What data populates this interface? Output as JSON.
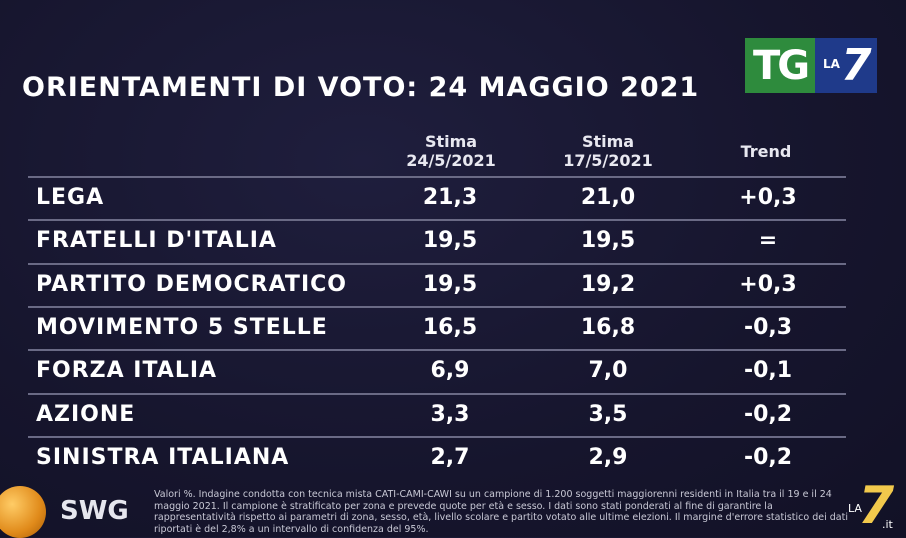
{
  "brand": {
    "tg": "TG",
    "la": "LA",
    "seven": "7",
    "corner_la": "LA",
    "corner_seven": "7",
    "corner_it": ".it"
  },
  "title": "ORIENTAMENTI DI VOTO: 24 MAGGIO 2021",
  "columns": {
    "stima1": "Stima\n24/5/2021",
    "stima1_l1": "Stima",
    "stima1_l2": "24/5/2021",
    "stima2_l1": "Stima",
    "stima2_l2": "17/5/2021",
    "trend": "Trend"
  },
  "chart_data": {
    "type": "table",
    "title": "ORIENTAMENTI DI VOTO: 24 MAGGIO 2021",
    "columns": [
      "",
      "Stima 24/5/2021",
      "Stima 17/5/2021",
      "Trend"
    ],
    "rows": [
      {
        "party": "LEGA",
        "stima_24_5": "21,3",
        "stima_17_5": "21,0",
        "trend": "+0,3"
      },
      {
        "party": "FRATELLI D'ITALIA",
        "stima_24_5": "19,5",
        "stima_17_5": "19,5",
        "trend": "="
      },
      {
        "party": "PARTITO DEMOCRATICO",
        "stima_24_5": "19,5",
        "stima_17_5": "19,2",
        "trend": "+0,3"
      },
      {
        "party": "MOVIMENTO 5 STELLE",
        "stima_24_5": "16,5",
        "stima_17_5": "16,8",
        "trend": "-0,3"
      },
      {
        "party": "FORZA ITALIA",
        "stima_24_5": "6,9",
        "stima_17_5": "7,0",
        "trend": "-0,1"
      },
      {
        "party": "AZIONE",
        "stima_24_5": "3,3",
        "stima_17_5": "3,5",
        "trend": "-0,2"
      },
      {
        "party": "SINISTRA ITALIANA",
        "stima_24_5": "2,7",
        "stima_17_5": "2,9",
        "trend": "-0,2"
      }
    ]
  },
  "footer": {
    "swg": "SWG",
    "note": "Valori %. Indagine condotta con tecnica mista CATI-CAMI-CAWI su un campione di 1.200 soggetti maggiorenni residenti in Italia tra il 19 e il 24 maggio 2021. Il campione è stratificato per zona e prevede quote per età e sesso. I dati sono stati ponderati al fine di garantire la rappresentatività rispetto ai parametri di zona, sesso, età, livello scolare e partito votato alle ultime elezioni. Il margine d'errore statistico dei dati riportati è del 2,8% a un intervallo di confidenza del 95%."
  },
  "colors": {
    "background": "#17162f",
    "tg_green": "#2e8b3d",
    "la7_blue": "#1f3a8a",
    "separator": "#6a6a85",
    "swg_orange": "#e08a1a"
  }
}
